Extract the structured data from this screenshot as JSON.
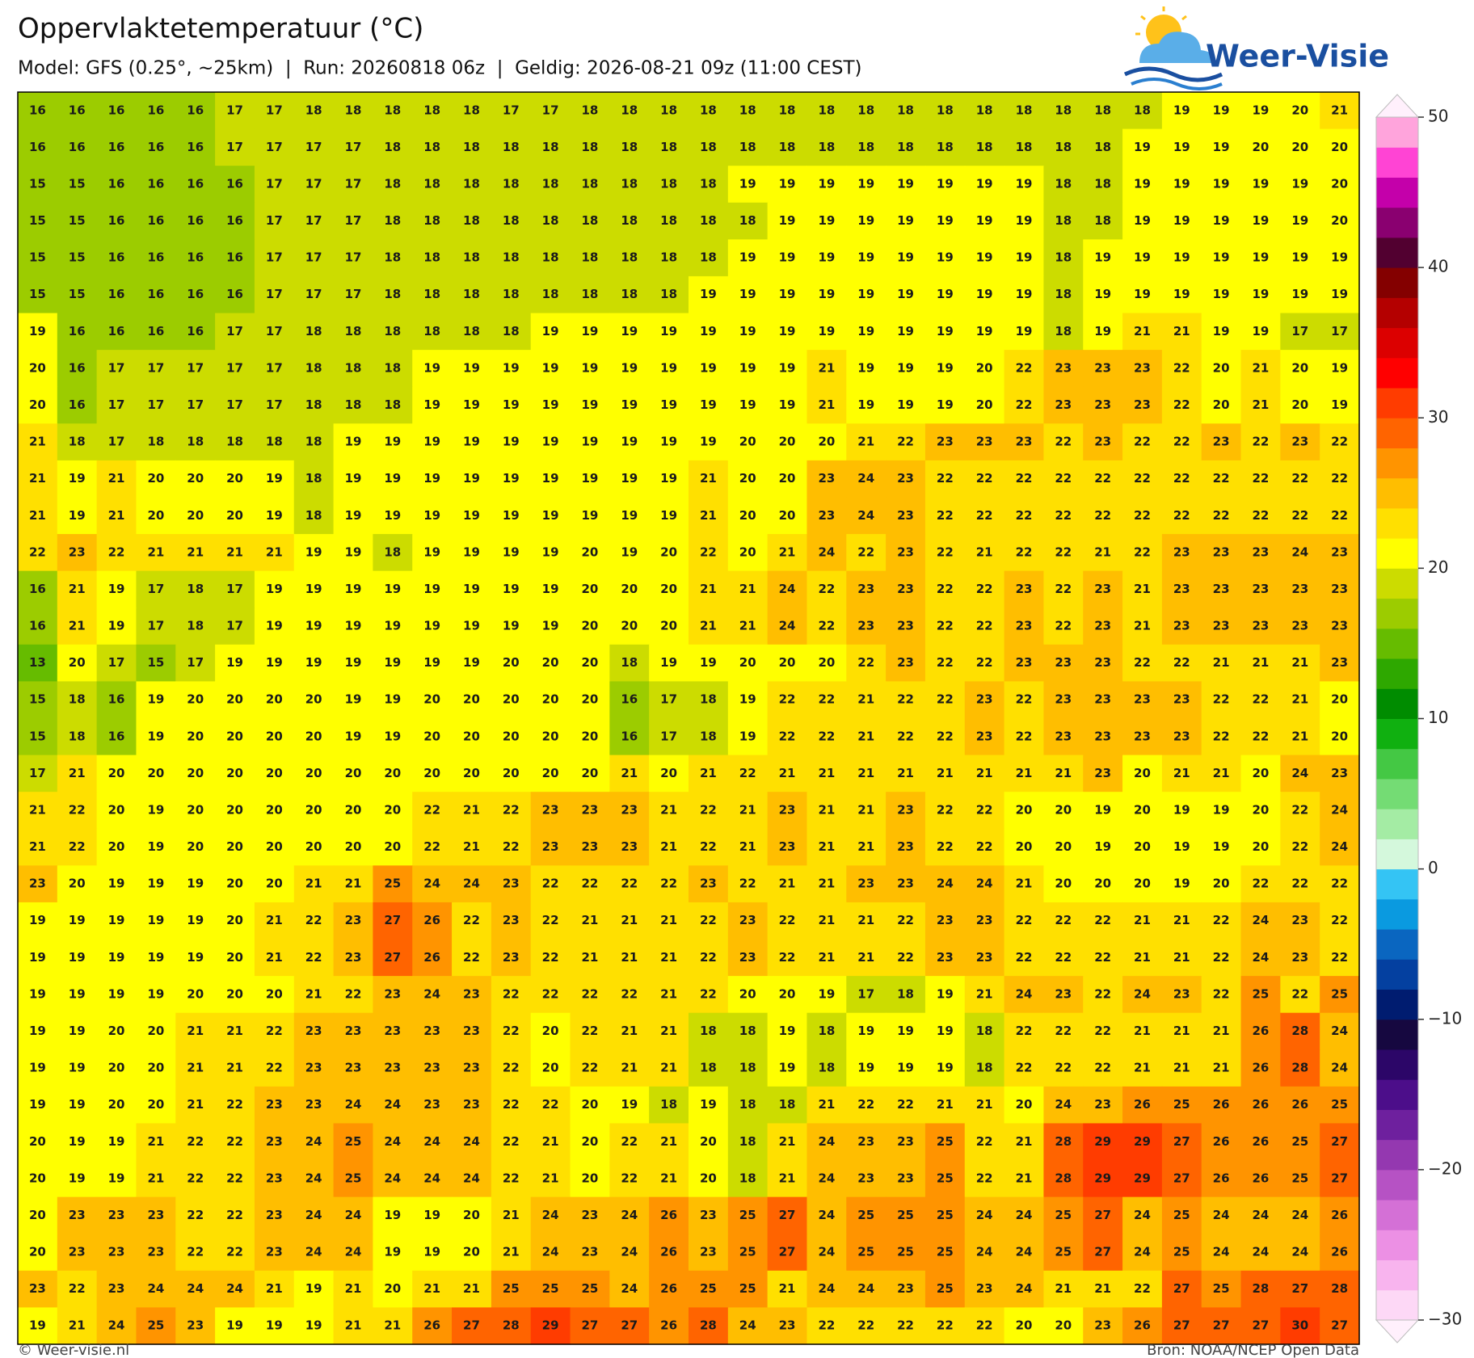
{
  "chart_data": {
    "type": "grid-map",
    "title": "Oppervlaktetemperatuur (°C)",
    "subtitle": "Model: GFS (0.25°, ~25km)  |  Run: 20260818 06z  |  Geldig: 2026-08-21 09z (11:00 CEST)",
    "values": [
      [
        16,
        16,
        16,
        16,
        16,
        17,
        17,
        18,
        18,
        18,
        18,
        18,
        17,
        17,
        18,
        18,
        18,
        18,
        18,
        18,
        18,
        18,
        18,
        18,
        18,
        18,
        18,
        18,
        18,
        19,
        19,
        19,
        20,
        21
      ],
      [
        16,
        16,
        16,
        16,
        16,
        17,
        17,
        17,
        17,
        18,
        18,
        18,
        18,
        18,
        18,
        18,
        18,
        18,
        18,
        18,
        18,
        18,
        18,
        18,
        18,
        18,
        18,
        18,
        19,
        19,
        19,
        20,
        20,
        20
      ],
      [
        15,
        15,
        16,
        16,
        16,
        16,
        17,
        17,
        17,
        18,
        18,
        18,
        18,
        18,
        18,
        18,
        18,
        18,
        19,
        19,
        19,
        19,
        19,
        19,
        19,
        19,
        18,
        18,
        19,
        19,
        19,
        19,
        19,
        20
      ],
      [
        15,
        15,
        16,
        16,
        16,
        16,
        17,
        17,
        17,
        18,
        18,
        18,
        18,
        18,
        18,
        18,
        18,
        18,
        18,
        19,
        19,
        19,
        19,
        19,
        19,
        19,
        18,
        18,
        19,
        19,
        19,
        19,
        19,
        20
      ],
      [
        15,
        15,
        16,
        16,
        16,
        16,
        17,
        17,
        17,
        18,
        18,
        18,
        18,
        18,
        18,
        18,
        18,
        18,
        19,
        19,
        19,
        19,
        19,
        19,
        19,
        19,
        18,
        19,
        19,
        19,
        19,
        19,
        19,
        19
      ],
      [
        15,
        15,
        16,
        16,
        16,
        16,
        17,
        17,
        17,
        18,
        18,
        18,
        18,
        18,
        18,
        18,
        18,
        19,
        19,
        19,
        19,
        19,
        19,
        19,
        19,
        19,
        18,
        19,
        19,
        19,
        19,
        19,
        19,
        19
      ],
      [
        19,
        16,
        16,
        16,
        16,
        17,
        17,
        18,
        18,
        18,
        18,
        18,
        18,
        19,
        19,
        19,
        19,
        19,
        19,
        19,
        19,
        19,
        19,
        19,
        19,
        19,
        18,
        19,
        21,
        21,
        19,
        19,
        17,
        17
      ],
      [
        20,
        16,
        17,
        17,
        17,
        17,
        17,
        18,
        18,
        18,
        19,
        19,
        19,
        19,
        19,
        19,
        19,
        19,
        19,
        19,
        21,
        19,
        19,
        19,
        20,
        22,
        23,
        23,
        23,
        22,
        20,
        21,
        20,
        19
      ],
      [
        20,
        16,
        17,
        17,
        17,
        17,
        17,
        18,
        18,
        18,
        19,
        19,
        19,
        19,
        19,
        19,
        19,
        19,
        19,
        19,
        21,
        19,
        19,
        19,
        20,
        22,
        23,
        23,
        23,
        22,
        20,
        21,
        20,
        19
      ],
      [
        21,
        18,
        17,
        18,
        18,
        18,
        18,
        18,
        19,
        19,
        19,
        19,
        19,
        19,
        19,
        19,
        19,
        19,
        20,
        20,
        20,
        21,
        22,
        23,
        23,
        23,
        22,
        23,
        22,
        22,
        23,
        22,
        23,
        22
      ],
      [
        21,
        19,
        21,
        20,
        20,
        20,
        19,
        18,
        19,
        19,
        19,
        19,
        19,
        19,
        19,
        19,
        19,
        21,
        20,
        20,
        23,
        24,
        23,
        22,
        22,
        22,
        22,
        22,
        22,
        22,
        22,
        22,
        22,
        22
      ],
      [
        21,
        19,
        21,
        20,
        20,
        20,
        19,
        18,
        19,
        19,
        19,
        19,
        19,
        19,
        19,
        19,
        19,
        21,
        20,
        20,
        23,
        24,
        23,
        22,
        22,
        22,
        22,
        22,
        22,
        22,
        22,
        22,
        22,
        22
      ],
      [
        22,
        23,
        22,
        21,
        21,
        21,
        21,
        19,
        19,
        18,
        19,
        19,
        19,
        19,
        20,
        19,
        20,
        22,
        20,
        21,
        24,
        22,
        23,
        22,
        21,
        22,
        22,
        21,
        22,
        23,
        23,
        23,
        24,
        23
      ],
      [
        16,
        21,
        19,
        17,
        18,
        17,
        19,
        19,
        19,
        19,
        19,
        19,
        19,
        19,
        20,
        20,
        20,
        21,
        21,
        24,
        22,
        23,
        23,
        22,
        22,
        23,
        22,
        23,
        21,
        23,
        23,
        23,
        23,
        23
      ],
      [
        16,
        21,
        19,
        17,
        18,
        17,
        19,
        19,
        19,
        19,
        19,
        19,
        19,
        19,
        20,
        20,
        20,
        21,
        21,
        24,
        22,
        23,
        23,
        22,
        22,
        23,
        22,
        23,
        21,
        23,
        23,
        23,
        23,
        23
      ],
      [
        13,
        20,
        17,
        15,
        17,
        19,
        19,
        19,
        19,
        19,
        19,
        19,
        20,
        20,
        20,
        18,
        19,
        19,
        20,
        20,
        20,
        22,
        23,
        22,
        22,
        23,
        23,
        23,
        22,
        22,
        21,
        21,
        21,
        23
      ],
      [
        15,
        18,
        16,
        19,
        20,
        20,
        20,
        20,
        19,
        19,
        20,
        20,
        20,
        20,
        20,
        16,
        17,
        18,
        19,
        22,
        22,
        21,
        22,
        22,
        23,
        22,
        23,
        23,
        23,
        23,
        22,
        22,
        21,
        20
      ],
      [
        15,
        18,
        16,
        19,
        20,
        20,
        20,
        20,
        19,
        19,
        20,
        20,
        20,
        20,
        20,
        16,
        17,
        18,
        19,
        22,
        22,
        21,
        22,
        22,
        23,
        22,
        23,
        23,
        23,
        23,
        22,
        22,
        21,
        20
      ],
      [
        17,
        21,
        20,
        20,
        20,
        20,
        20,
        20,
        20,
        20,
        20,
        20,
        20,
        20,
        20,
        21,
        20,
        21,
        22,
        21,
        21,
        21,
        21,
        21,
        21,
        21,
        21,
        23,
        20,
        21,
        21,
        20,
        24,
        23
      ],
      [
        21,
        22,
        20,
        19,
        20,
        20,
        20,
        20,
        20,
        20,
        22,
        21,
        22,
        23,
        23,
        23,
        21,
        22,
        21,
        23,
        21,
        21,
        23,
        22,
        22,
        20,
        20,
        19,
        20,
        19,
        19,
        20,
        22,
        24
      ],
      [
        21,
        22,
        20,
        19,
        20,
        20,
        20,
        20,
        20,
        20,
        22,
        21,
        22,
        23,
        23,
        23,
        21,
        22,
        21,
        23,
        21,
        21,
        23,
        22,
        22,
        20,
        20,
        19,
        20,
        19,
        19,
        20,
        22,
        24
      ],
      [
        23,
        20,
        19,
        19,
        19,
        20,
        20,
        21,
        21,
        25,
        24,
        24,
        23,
        22,
        22,
        22,
        22,
        23,
        22,
        21,
        21,
        23,
        23,
        24,
        24,
        21,
        20,
        20,
        20,
        19,
        20,
        22,
        22,
        22
      ],
      [
        19,
        19,
        19,
        19,
        19,
        20,
        21,
        22,
        23,
        27,
        26,
        22,
        23,
        22,
        21,
        21,
        21,
        22,
        23,
        22,
        21,
        21,
        22,
        23,
        23,
        22,
        22,
        22,
        21,
        21,
        22,
        24,
        23,
        22
      ],
      [
        19,
        19,
        19,
        19,
        19,
        20,
        21,
        22,
        23,
        27,
        26,
        22,
        23,
        22,
        21,
        21,
        21,
        22,
        23,
        22,
        21,
        21,
        22,
        23,
        23,
        22,
        22,
        22,
        21,
        21,
        22,
        24,
        23,
        22
      ],
      [
        19,
        19,
        19,
        19,
        20,
        20,
        20,
        21,
        22,
        23,
        24,
        23,
        22,
        22,
        22,
        22,
        21,
        22,
        20,
        20,
        19,
        17,
        18,
        19,
        21,
        24,
        23,
        22,
        24,
        23,
        22,
        25,
        22,
        25
      ],
      [
        19,
        19,
        20,
        20,
        21,
        21,
        22,
        23,
        23,
        23,
        23,
        23,
        22,
        20,
        22,
        21,
        21,
        18,
        18,
        19,
        18,
        19,
        19,
        19,
        18,
        22,
        22,
        22,
        21,
        21,
        21,
        26,
        28,
        24
      ],
      [
        19,
        19,
        20,
        20,
        21,
        21,
        22,
        23,
        23,
        23,
        23,
        23,
        22,
        20,
        22,
        21,
        21,
        18,
        18,
        19,
        18,
        19,
        19,
        19,
        18,
        22,
        22,
        22,
        21,
        21,
        21,
        26,
        28,
        24
      ],
      [
        19,
        19,
        20,
        20,
        21,
        22,
        23,
        23,
        24,
        24,
        23,
        23,
        22,
        22,
        20,
        19,
        18,
        19,
        18,
        18,
        21,
        22,
        22,
        21,
        21,
        20,
        24,
        23,
        26,
        25,
        26,
        26,
        26,
        25
      ],
      [
        20,
        19,
        19,
        21,
        22,
        22,
        23,
        24,
        25,
        24,
        24,
        24,
        22,
        21,
        20,
        22,
        21,
        20,
        18,
        21,
        24,
        23,
        23,
        25,
        22,
        21,
        28,
        29,
        29,
        27,
        26,
        26,
        25,
        27
      ],
      [
        20,
        19,
        19,
        21,
        22,
        22,
        23,
        24,
        25,
        24,
        24,
        24,
        22,
        21,
        20,
        22,
        21,
        20,
        18,
        21,
        24,
        23,
        23,
        25,
        22,
        21,
        28,
        29,
        29,
        27,
        26,
        26,
        25,
        27
      ],
      [
        20,
        23,
        23,
        23,
        22,
        22,
        23,
        24,
        24,
        19,
        19,
        20,
        21,
        24,
        23,
        24,
        26,
        23,
        25,
        27,
        24,
        25,
        25,
        25,
        24,
        24,
        25,
        27,
        24,
        25,
        24,
        24,
        24,
        26
      ],
      [
        20,
        23,
        23,
        23,
        22,
        22,
        23,
        24,
        24,
        19,
        19,
        20,
        21,
        24,
        23,
        24,
        26,
        23,
        25,
        27,
        24,
        25,
        25,
        25,
        24,
        24,
        25,
        27,
        24,
        25,
        24,
        24,
        24,
        26
      ],
      [
        23,
        22,
        23,
        24,
        24,
        24,
        21,
        19,
        21,
        20,
        21,
        21,
        25,
        25,
        25,
        24,
        26,
        25,
        25,
        21,
        24,
        24,
        23,
        25,
        23,
        24,
        21,
        21,
        22,
        27,
        25,
        28,
        27,
        28
      ],
      [
        19,
        21,
        24,
        25,
        23,
        19,
        19,
        19,
        21,
        21,
        26,
        27,
        28,
        29,
        27,
        27,
        26,
        28,
        24,
        23,
        22,
        22,
        22,
        22,
        22,
        20,
        20,
        23,
        26,
        27,
        27,
        27,
        30,
        27
      ]
    ],
    "colorbar": {
      "lim": [
        -30,
        50
      ],
      "ticks": [
        50,
        40,
        30,
        20,
        10,
        0,
        {
          "value": -10,
          "label": "−10"
        },
        {
          "value": -20,
          "label": "−20"
        },
        {
          "value": -30,
          "label": "−30"
        }
      ],
      "colors": [
        "#fdd8f6",
        "#f8b4ee",
        "#ec90e4",
        "#d470d6",
        "#b652c4",
        "#9438b0",
        "#6e209e",
        "#4c0e8a",
        "#2c0668",
        "#160840",
        "#001c70",
        "#0440a0",
        "#0a66c0",
        "#0a9ae0",
        "#34c4f4",
        "#d4f8dc",
        "#a4eca4",
        "#74dc74",
        "#44c844",
        "#10b010",
        "#008c00",
        "#2ea800",
        "#66bc00",
        "#9ccc00",
        "#ccdc00",
        "#ffff00",
        "#ffe000",
        "#ffbe00",
        "#ff9400",
        "#ff6400",
        "#ff3c00",
        "#ff0000",
        "#dc0000",
        "#b40000",
        "#840000",
        "#520030",
        "#8a0070",
        "#c400aa",
        "#ff44d4",
        "#ffa4dc"
      ],
      "under_color": "#fff0fc",
      "over_color": "#fff0fc"
    }
  },
  "logo": "Weer-Visie",
  "footer": {
    "left": "© Weer-visie.nl",
    "right": "Bron: NOAA/NCEP Open Data"
  }
}
